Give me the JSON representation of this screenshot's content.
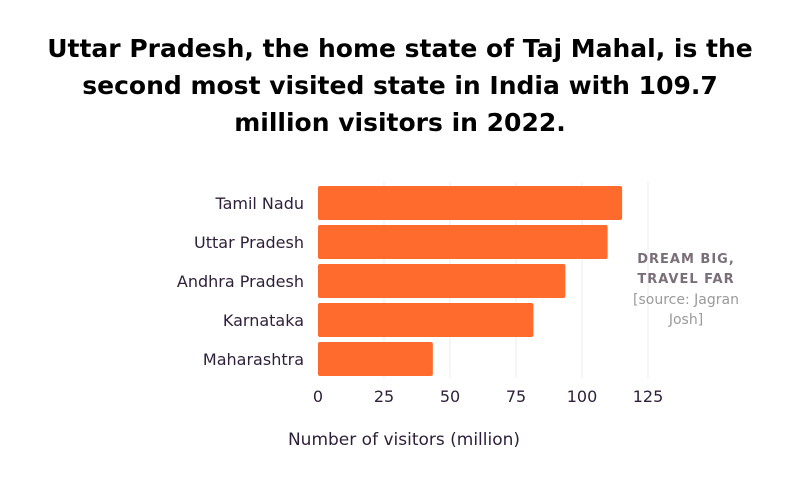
{
  "title": "Uttar Pradesh, the home state of Taj Mahal, is the second most visited state in India with 109.7 million visitors in 2022.",
  "side_note": {
    "tagline_line1": "DREAM BIG,",
    "tagline_line2": "TRAVEL FAR",
    "source": "[source: Jagran Josh]"
  },
  "colors": {
    "bar": "#ff6b2c",
    "grid": "#eeeeee",
    "text": "#2d1f3a"
  },
  "chart_data": {
    "type": "bar",
    "orientation": "horizontal",
    "categories": [
      "Tamil Nadu",
      "Uttar Pradesh",
      "Andhra Pradesh",
      "Karnataka",
      "Maharashtra"
    ],
    "values": [
      115.2,
      109.7,
      93.7,
      81.6,
      43.5
    ],
    "title": "Uttar Pradesh, the home state of Taj Mahal, is the second most visited state in India with 109.7 million visitors in 2022.",
    "xlabel": "Number of visitors (million)",
    "ylabel": "",
    "xlim": [
      0,
      125
    ],
    "xticks": [
      0,
      25,
      50,
      75,
      100,
      125
    ],
    "grid": true
  }
}
